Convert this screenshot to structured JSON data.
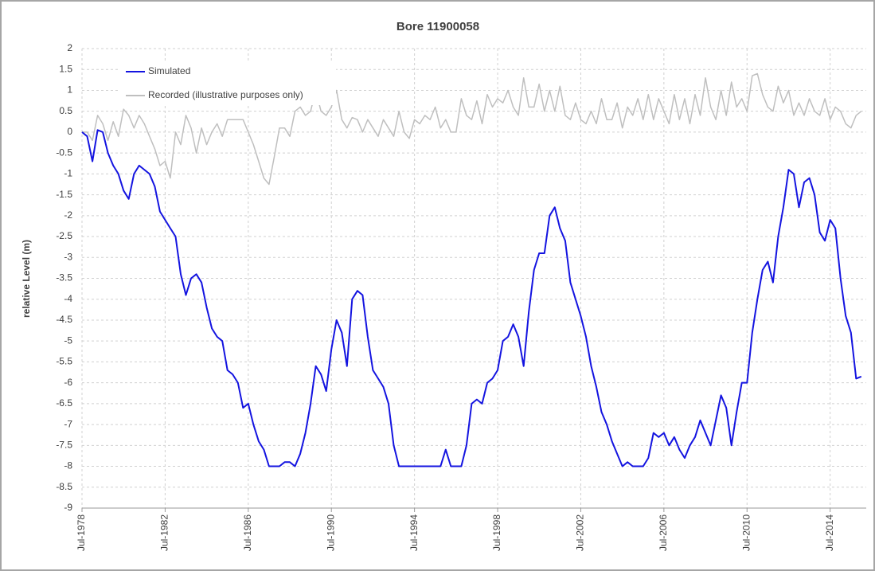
{
  "chart_data": {
    "type": "line",
    "title": "Bore 11900058",
    "y_label": "relative Level (m)",
    "x": [
      "1978-07",
      "1978-10",
      "1979-01",
      "1979-04",
      "1979-07",
      "1979-10",
      "1980-01",
      "1980-04",
      "1980-07",
      "1980-10",
      "1981-01",
      "1981-04",
      "1981-07",
      "1981-10",
      "1982-01",
      "1982-04",
      "1982-07",
      "1982-10",
      "1983-01",
      "1983-04",
      "1983-07",
      "1983-10",
      "1984-01",
      "1984-04",
      "1984-07",
      "1984-10",
      "1985-01",
      "1985-04",
      "1985-07",
      "1985-10",
      "1986-01",
      "1986-04",
      "1986-07",
      "1986-10",
      "1987-01",
      "1987-04",
      "1987-07",
      "1987-10",
      "1988-01",
      "1988-04",
      "1988-07",
      "1988-10",
      "1989-01",
      "1989-04",
      "1989-07",
      "1989-10",
      "1990-01",
      "1990-04",
      "1990-07",
      "1990-10",
      "1991-01",
      "1991-04",
      "1991-07",
      "1991-10",
      "1992-01",
      "1992-04",
      "1992-07",
      "1992-10",
      "1993-01",
      "1993-04",
      "1993-07",
      "1993-10",
      "1994-01",
      "1994-04",
      "1994-07",
      "1994-10",
      "1995-01",
      "1995-04",
      "1995-07",
      "1995-10",
      "1996-01",
      "1996-04",
      "1996-07",
      "1996-10",
      "1997-01",
      "1997-04",
      "1997-07",
      "1997-10",
      "1998-01",
      "1998-04",
      "1998-07",
      "1998-10",
      "1999-01",
      "1999-04",
      "1999-07",
      "1999-10",
      "2000-01",
      "2000-04",
      "2000-07",
      "2000-10",
      "2001-01",
      "2001-04",
      "2001-07",
      "2001-10",
      "2002-01",
      "2002-04",
      "2002-07",
      "2002-10",
      "2003-01",
      "2003-04",
      "2003-07",
      "2003-10",
      "2004-01",
      "2004-04",
      "2004-07",
      "2004-10",
      "2005-01",
      "2005-04",
      "2005-07",
      "2005-10",
      "2006-01",
      "2006-04",
      "2006-07",
      "2006-10",
      "2007-01",
      "2007-04",
      "2007-07",
      "2007-10",
      "2008-01",
      "2008-04",
      "2008-07",
      "2008-10",
      "2009-01",
      "2009-04",
      "2009-07",
      "2009-10",
      "2010-01",
      "2010-04",
      "2010-07",
      "2010-10",
      "2011-01",
      "2011-04",
      "2011-07",
      "2011-10",
      "2012-01",
      "2012-04",
      "2012-07",
      "2012-10",
      "2013-01",
      "2013-04",
      "2013-07",
      "2013-10",
      "2014-01",
      "2014-04",
      "2014-07",
      "2014-10",
      "2015-01",
      "2015-04",
      "2015-07",
      "2015-10",
      "2016-01"
    ],
    "series": [
      {
        "name": "Simulated",
        "color": "#1414e0",
        "values": [
          0,
          -0.1,
          -0.7,
          0.05,
          0,
          -0.5,
          -0.8,
          -1.0,
          -1.4,
          -1.6,
          -1.0,
          -0.8,
          -0.9,
          -1.0,
          -1.3,
          -1.9,
          -2.1,
          -2.3,
          -2.5,
          -3.4,
          -3.9,
          -3.5,
          -3.4,
          -3.6,
          -4.2,
          -4.7,
          -4.9,
          -5.0,
          -5.7,
          -5.8,
          -6.0,
          -6.6,
          -6.5,
          -7.0,
          -7.4,
          -7.6,
          -8.0,
          -8.0,
          -8.0,
          -7.9,
          -7.9,
          -8.0,
          -7.7,
          -7.2,
          -6.5,
          -5.6,
          -5.8,
          -6.2,
          -5.2,
          -4.5,
          -4.8,
          -5.6,
          -4.0,
          -3.8,
          -3.9,
          -4.9,
          -5.7,
          -5.9,
          -6.1,
          -6.5,
          -7.5,
          -8.0,
          -8,
          -8,
          -8,
          -8,
          -8,
          -8,
          -8,
          -8,
          -7.6,
          -8,
          -8,
          -8,
          -7.5,
          -6.5,
          -6.4,
          -6.5,
          -6.0,
          -5.9,
          -5.7,
          -5.0,
          -4.9,
          -4.6,
          -4.9,
          -5.6,
          -4.3,
          -3.3,
          -2.9,
          -2.9,
          -2.0,
          -1.8,
          -2.3,
          -2.6,
          -3.6,
          -4.0,
          -4.4,
          -4.9,
          -5.6,
          -6.1,
          -6.7,
          -7.0,
          -7.4,
          -7.7,
          -8.0,
          -7.9,
          -8,
          -8,
          -8,
          -7.8,
          -7.2,
          -7.3,
          -7.2,
          -7.5,
          -7.3,
          -7.6,
          -7.8,
          -7.5,
          -7.3,
          -6.9,
          -7.2,
          -7.5,
          -6.9,
          -6.3,
          -6.6,
          -7.5,
          -6.7,
          -6.0,
          -6.0,
          -4.8,
          -4.0,
          -3.3,
          -3.1,
          -3.6,
          -2.5,
          -1.8,
          -0.9,
          -1.0,
          -1.8,
          -1.2,
          -1.1,
          -1.5,
          -2.4,
          -2.6,
          -2.1,
          -2.3,
          -3.5,
          -4.4,
          -4.8,
          -5.9,
          -5.85
        ]
      },
      {
        "name": "Recorded (illustrative purposes only)",
        "color": "#bfbfbf",
        "values": [
          0.0,
          0.0,
          -0.2,
          0.4,
          0.2,
          -0.2,
          0.25,
          -0.1,
          0.55,
          0.4,
          0.1,
          0.4,
          0.2,
          -0.1,
          -0.4,
          -0.8,
          -0.7,
          -1.1,
          0.0,
          -0.3,
          0.4,
          0.1,
          -0.5,
          0.1,
          -0.3,
          0.0,
          0.2,
          -0.1,
          0.3,
          0.3,
          0.3,
          0.3,
          0.0,
          -0.3,
          -0.7,
          -1.1,
          -1.25,
          -0.6,
          0.1,
          0.1,
          -0.1,
          0.5,
          0.6,
          0.4,
          0.5,
          1.0,
          0.5,
          0.4,
          0.6,
          1.0,
          0.3,
          0.1,
          0.35,
          0.3,
          0.0,
          0.3,
          0.1,
          -0.1,
          0.3,
          0.1,
          -0.1,
          0.5,
          0.0,
          -0.15,
          0.3,
          0.2,
          0.4,
          0.3,
          0.6,
          0.1,
          0.3,
          0.0,
          0.0,
          0.8,
          0.4,
          0.3,
          0.75,
          0.2,
          0.9,
          0.6,
          0.8,
          0.7,
          1.0,
          0.6,
          0.4,
          1.3,
          0.6,
          0.6,
          1.15,
          0.5,
          1.0,
          0.5,
          1.1,
          0.4,
          0.3,
          0.7,
          0.3,
          0.2,
          0.5,
          0.2,
          0.8,
          0.3,
          0.3,
          0.7,
          0.1,
          0.6,
          0.4,
          0.8,
          0.3,
          0.9,
          0.3,
          0.8,
          0.5,
          0.2,
          0.9,
          0.3,
          0.8,
          0.2,
          0.9,
          0.4,
          1.3,
          0.6,
          0.3,
          1.0,
          0.4,
          1.2,
          0.6,
          0.8,
          0.5,
          1.35,
          1.4,
          0.9,
          0.6,
          0.5,
          1.1,
          0.7,
          1.0,
          0.4,
          0.7,
          0.4,
          0.8,
          0.5,
          0.4,
          0.8,
          0.3,
          0.6,
          0.5,
          0.2,
          0.1,
          0.4,
          0.5
        ]
      }
    ],
    "xlim": [
      "1978-07",
      "2016-02"
    ],
    "xticks": [
      {
        "value": "1978-07",
        "label": "Jul-1978"
      },
      {
        "value": "1982-07",
        "label": "Jul-1982"
      },
      {
        "value": "1986-07",
        "label": "Jul-1986"
      },
      {
        "value": "1990-07",
        "label": "Jul-1990"
      },
      {
        "value": "1994-07",
        "label": "Jul-1994"
      },
      {
        "value": "1998-07",
        "label": "Jul-1998"
      },
      {
        "value": "2002-07",
        "label": "Jul-2002"
      },
      {
        "value": "2006-07",
        "label": "Jul-2006"
      },
      {
        "value": "2010-07",
        "label": "Jul-2010"
      },
      {
        "value": "2014-07",
        "label": "Jul-2014"
      }
    ],
    "ylim": [
      -9,
      2
    ],
    "yticks": [
      -9,
      -8.5,
      -8,
      -7.5,
      -7,
      -6.5,
      -6,
      -5.5,
      -5,
      -4.5,
      -4,
      -3.5,
      -3,
      -2.5,
      -2,
      -1.5,
      -1,
      -0.5,
      0,
      0.5,
      1,
      1.5,
      2
    ],
    "grid": true,
    "legend": "upper left"
  }
}
